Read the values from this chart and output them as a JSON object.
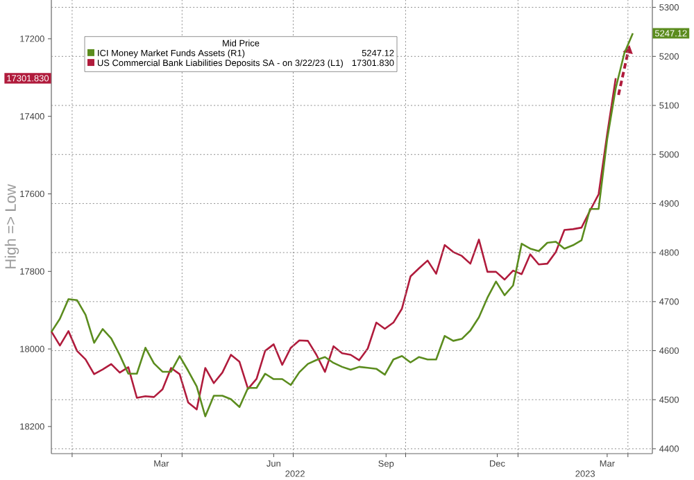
{
  "chart_data": {
    "type": "line",
    "ylabel": "High => Low",
    "legend_title": "Mid Price",
    "legend": "top left",
    "grid": true,
    "xlim": [
      "2021-12-15",
      "2023-04-21"
    ],
    "xticks": [
      {
        "value": "2022-01-01",
        "label": null
      },
      {
        "value": "2022-04-01",
        "label": null
      },
      {
        "value": "2022-07-01",
        "label": null
      },
      {
        "value": "2022-10-01",
        "label": null
      },
      {
        "value": "2023-01-01",
        "label": null
      },
      {
        "value": "2023-04-01",
        "label": null
      },
      {
        "value": "2022-03-15",
        "label": "Mar"
      },
      {
        "value": "2022-06-15",
        "label": "Jun"
      },
      {
        "value": "2022-09-15",
        "label": "Sep"
      },
      {
        "value": "2022-12-15",
        "label": "Dec"
      },
      {
        "value": "2023-03-15",
        "label": "Mar"
      }
    ],
    "annotations": [
      "5247.12",
      "17301.830",
      "2022",
      "2023"
    ],
    "ylim": [
      18270,
      17100
    ],
    "yticks": [
      17200,
      17400,
      17600,
      17800,
      18000,
      18200
    ],
    "y2lim": [
      4390,
      5315
    ],
    "y2ticks": [
      4400,
      4500,
      4600,
      4700,
      4800,
      4900,
      5000,
      5100,
      5200,
      5300
    ],
    "series": [
      {
        "name": "ICI Money Market Funds Assets  (R1)",
        "color": "#5b8c1e",
        "axis": "y2",
        "x": [
          "2021-12-15",
          "2021-12-22",
          "2021-12-29",
          "2022-01-05",
          "2022-01-12",
          "2022-01-19",
          "2022-01-26",
          "2022-02-02",
          "2022-02-09",
          "2022-02-16",
          "2022-02-23",
          "2022-03-02",
          "2022-03-09",
          "2022-03-16",
          "2022-03-23",
          "2022-03-30",
          "2022-04-06",
          "2022-04-13",
          "2022-04-20",
          "2022-04-27",
          "2022-05-04",
          "2022-05-11",
          "2022-05-18",
          "2022-05-25",
          "2022-06-01",
          "2022-06-08",
          "2022-06-15",
          "2022-06-22",
          "2022-06-29",
          "2022-07-06",
          "2022-07-13",
          "2022-07-20",
          "2022-07-27",
          "2022-08-03",
          "2022-08-10",
          "2022-08-17",
          "2022-08-24",
          "2022-08-31",
          "2022-09-07",
          "2022-09-14",
          "2022-09-21",
          "2022-09-28",
          "2022-10-05",
          "2022-10-12",
          "2022-10-19",
          "2022-10-26",
          "2022-11-02",
          "2022-11-09",
          "2022-11-16",
          "2022-11-23",
          "2022-11-30",
          "2022-12-07",
          "2022-12-14",
          "2022-12-21",
          "2022-12-28",
          "2023-01-04",
          "2023-01-11",
          "2023-01-18",
          "2023-01-25",
          "2023-02-01",
          "2023-02-08",
          "2023-02-15",
          "2023-02-22",
          "2023-03-01",
          "2023-03-08",
          "2023-03-15",
          "2023-03-22",
          "2023-03-29",
          "2023-04-05"
        ],
        "values": [
          4638,
          4665,
          4705,
          4703,
          4673,
          4616,
          4644,
          4625,
          4591,
          4553,
          4553,
          4606,
          4574,
          4557,
          4557,
          4589,
          4559,
          4527,
          4466,
          4508,
          4508,
          4501,
          4485,
          4524,
          4524,
          4553,
          4542,
          4542,
          4530,
          4556,
          4573,
          4581,
          4587,
          4575,
          4567,
          4561,
          4567,
          4565,
          4563,
          4551,
          4582,
          4589,
          4576,
          4587,
          4582,
          4582,
          4630,
          4620,
          4624,
          4641,
          4668,
          4708,
          4741,
          4713,
          4733,
          4818,
          4808,
          4803,
          4820,
          4822,
          4808,
          4815,
          4825,
          4889,
          4889,
          5031,
          5135,
          5206,
          5247.12
        ]
      },
      {
        "name": "US Commercial Bank Liabilities Deposits SA -  on 3/22/23  (L1)",
        "color": "#b01b3c",
        "axis": "y",
        "x": [
          "2021-12-15",
          "2021-12-22",
          "2021-12-29",
          "2022-01-05",
          "2022-01-12",
          "2022-01-19",
          "2022-01-26",
          "2022-02-02",
          "2022-02-09",
          "2022-02-16",
          "2022-02-23",
          "2022-03-02",
          "2022-03-09",
          "2022-03-16",
          "2022-03-23",
          "2022-03-30",
          "2022-04-06",
          "2022-04-13",
          "2022-04-20",
          "2022-04-27",
          "2022-05-04",
          "2022-05-11",
          "2022-05-18",
          "2022-05-25",
          "2022-06-01",
          "2022-06-08",
          "2022-06-15",
          "2022-06-22",
          "2022-06-29",
          "2022-07-06",
          "2022-07-13",
          "2022-07-20",
          "2022-07-27",
          "2022-08-03",
          "2022-08-10",
          "2022-08-17",
          "2022-08-24",
          "2022-08-31",
          "2022-09-07",
          "2022-09-14",
          "2022-09-21",
          "2022-09-28",
          "2022-10-05",
          "2022-10-12",
          "2022-10-19",
          "2022-10-26",
          "2022-11-02",
          "2022-11-09",
          "2022-11-16",
          "2022-11-23",
          "2022-11-30",
          "2022-12-07",
          "2022-12-14",
          "2022-12-21",
          "2022-12-28",
          "2023-01-04",
          "2023-01-11",
          "2023-01-18",
          "2023-01-25",
          "2023-02-01",
          "2023-02-08",
          "2023-02-15",
          "2023-02-22",
          "2023-03-01",
          "2023-03-08",
          "2023-03-15",
          "2023-03-22"
        ],
        "values": [
          17955,
          17991,
          17954,
          18005,
          18027,
          18065,
          18053,
          18039,
          18061,
          18047,
          18126,
          18122,
          18124,
          18104,
          18049,
          18065,
          18138,
          18156,
          18049,
          18088,
          18061,
          18015,
          18033,
          18103,
          18077,
          18005,
          17988,
          18041,
          17997,
          17978,
          17979,
          18015,
          18059,
          17993,
          18011,
          18015,
          18029,
          17999,
          17932,
          17948,
          17932,
          17896,
          17813,
          17792,
          17772,
          17806,
          17732,
          17750,
          17760,
          17780,
          17718,
          17801,
          17801,
          17821,
          17798,
          17807,
          17756,
          17782,
          17780,
          17750,
          17693,
          17691,
          17687,
          17643,
          17601,
          17446,
          17301.83
        ]
      }
    ]
  }
}
